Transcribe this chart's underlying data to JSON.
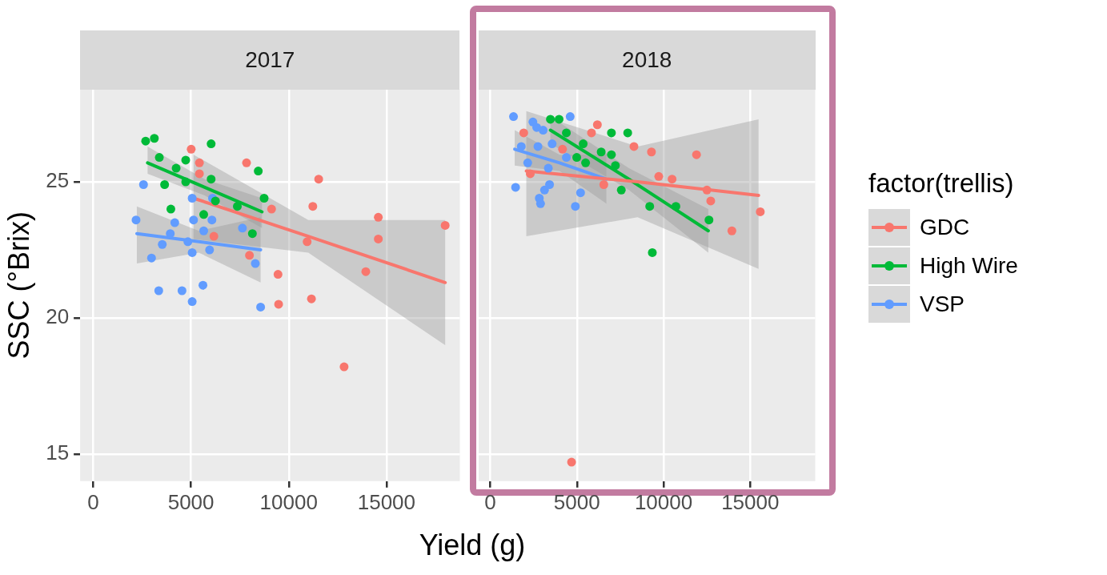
{
  "chart_data": [
    {
      "type": "scatter",
      "title": "2017",
      "xlabel": "Yield (g)",
      "ylabel": "SSC (°Brix)",
      "xlim": [
        -670,
        18750
      ],
      "ylim": [
        14,
        28.4
      ],
      "xticks": [
        0,
        5000,
        10000,
        15000
      ],
      "yticks": [
        15,
        20,
        25
      ],
      "grid": true,
      "marker": "circle",
      "series": [
        {
          "type": "scatter",
          "color": "#f8766d",
          "x": [
            5010,
            5430,
            5430,
            7840,
            11530,
            11230,
            9120,
            14580,
            18000,
            14580,
            10940,
            6170,
            7990,
            13940,
            9450,
            11160,
            9480,
            12830
          ],
          "values": [
            26.2,
            25.7,
            25.3,
            25.7,
            25.1,
            24.1,
            24.0,
            23.7,
            23.4,
            22.9,
            22.8,
            23.0,
            22.3,
            21.7,
            21.6,
            20.7,
            20.5,
            18.2
          ]
        },
        {
          "type": "scatter",
          "color": "#00ba38",
          "x": [
            2680,
            3125,
            6030,
            3380,
            4730,
            4240,
            8440,
            6030,
            3650,
            4730,
            8740,
            6250,
            7370,
            3970,
            5650,
            8140
          ],
          "values": [
            26.5,
            26.6,
            26.4,
            25.9,
            25.8,
            25.5,
            25.4,
            25.1,
            24.9,
            25.0,
            24.4,
            24.3,
            24.1,
            24.0,
            23.8,
            23.1
          ]
        },
        {
          "type": "scatter",
          "color": "#619cff",
          "x": [
            2570,
            5060,
            6100,
            2190,
            4170,
            5130,
            6070,
            7630,
            3940,
            5650,
            3530,
            4840,
            5950,
            5060,
            2980,
            8290,
            3350,
            4540,
            5610,
            5060,
            8560
          ],
          "values": [
            24.9,
            24.4,
            24.4,
            23.6,
            23.5,
            23.6,
            23.6,
            23.3,
            23.1,
            23.2,
            22.7,
            22.8,
            22.5,
            22.4,
            22.2,
            22.0,
            21.0,
            21.0,
            21.2,
            20.6,
            20.4
          ]
        },
        {
          "type": "line",
          "marker": "none",
          "color": "#f8766d",
          "x": [
            5130,
            11000,
            18000
          ],
          "values": [
            24.4,
            23.0,
            21.3
          ],
          "lower": [
            22.9,
            22.4,
            19.0
          ],
          "upper": [
            26.0,
            23.6,
            23.6
          ]
        },
        {
          "type": "line",
          "marker": "none",
          "color": "#00ba38",
          "x": [
            2780,
            5700,
            8630
          ],
          "values": [
            25.7,
            24.8,
            23.9
          ],
          "lower": [
            25.3,
            24.5,
            23.3
          ],
          "upper": [
            26.3,
            25.1,
            24.4
          ]
        },
        {
          "type": "line",
          "marker": "none",
          "color": "#619cff",
          "x": [
            2230,
            5400,
            8560
          ],
          "values": [
            23.1,
            22.8,
            22.5
          ],
          "lower": [
            22.0,
            22.4,
            21.3
          ],
          "upper": [
            24.1,
            23.2,
            23.7
          ]
        }
      ]
    },
    {
      "type": "scatter",
      "title": "2018",
      "xlim": [
        -670,
        18750
      ],
      "ylim": [
        14,
        28.4
      ],
      "xticks": [
        0,
        5000,
        10000,
        15000
      ],
      "yticks": [
        15,
        20,
        25
      ],
      "tick_labels": "x",
      "grid": true,
      "marker": "circle",
      "legend": "right",
      "legend_title": "factor(trellis)",
      "series": [
        {
          "type": "scatter",
          "name": "GDC",
          "color": "#f8766d",
          "x": [
            1930,
            6180,
            5840,
            8290,
            9300,
            11900,
            4170,
            9720,
            10490,
            2310,
            6550,
            12720,
            12500,
            15580,
            13940,
            4690
          ],
          "values": [
            26.8,
            27.1,
            26.8,
            26.3,
            26.1,
            26.0,
            26.2,
            25.2,
            25.1,
            25.3,
            24.9,
            24.3,
            24.7,
            23.9,
            23.2,
            14.7
          ]
        },
        {
          "type": "scatter",
          "name": "High Wire",
          "color": "#00ba38",
          "x": [
            3470,
            3970,
            6990,
            7930,
            4390,
            5360,
            6400,
            6990,
            4990,
            5500,
            7220,
            7560,
            9200,
            10710,
            12620,
            9350
          ],
          "values": [
            27.3,
            27.3,
            26.8,
            26.8,
            26.8,
            26.4,
            26.1,
            26.0,
            25.9,
            25.7,
            25.6,
            24.7,
            24.1,
            24.1,
            23.6,
            22.4
          ]
        },
        {
          "type": "scatter",
          "name": "VSP",
          "color": "#619cff",
          "x": [
            1340,
            4610,
            2460,
            2680,
            3050,
            1790,
            2750,
            3570,
            2160,
            4390,
            3350,
            1460,
            3420,
            3130,
            2830,
            2900,
            5210,
            4910
          ],
          "values": [
            27.4,
            27.4,
            27.2,
            27.0,
            26.9,
            26.3,
            26.3,
            26.4,
            25.7,
            25.9,
            25.5,
            24.8,
            24.9,
            24.7,
            24.4,
            24.2,
            24.6,
            24.1
          ]
        },
        {
          "type": "line",
          "marker": "none",
          "color": "#f8766d",
          "x": [
            2080,
            8500,
            15480
          ],
          "values": [
            25.4,
            25.0,
            24.5
          ],
          "lower": [
            23.0,
            23.7,
            21.8
          ],
          "upper": [
            27.6,
            26.3,
            27.3
          ]
        },
        {
          "type": "line",
          "marker": "none",
          "color": "#00ba38",
          "x": [
            3470,
            8000,
            12580
          ],
          "values": [
            26.9,
            25.1,
            23.2
          ],
          "lower": [
            26.4,
            24.7,
            22.4
          ],
          "upper": [
            27.4,
            25.5,
            24.0
          ]
        },
        {
          "type": "line",
          "marker": "none",
          "color": "#619cff",
          "x": [
            1410,
            4000,
            6700
          ],
          "values": [
            26.2,
            25.7,
            25.1
          ],
          "lower": [
            25.6,
            25.4,
            24.2
          ],
          "upper": [
            26.9,
            26.0,
            26.0
          ]
        }
      ]
    }
  ]
}
